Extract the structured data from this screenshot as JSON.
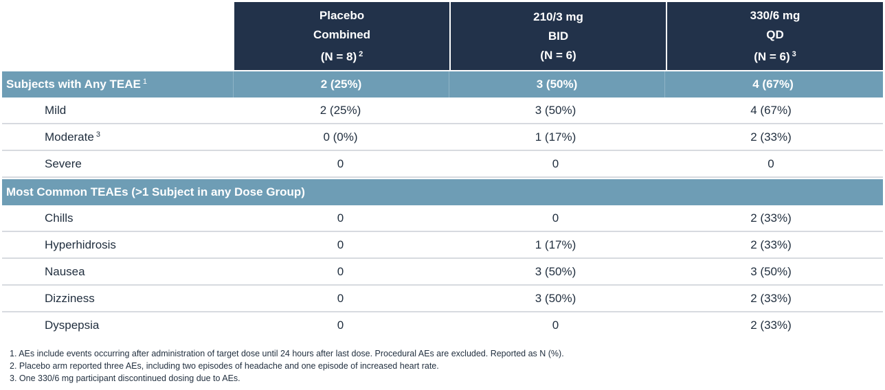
{
  "header": {
    "col1": {
      "line1": "Placebo",
      "line2": "Combined",
      "line3": "(N = 8)",
      "sup": "2"
    },
    "col2": {
      "line1": "210/3 mg",
      "line2": "BID",
      "line3": "(N = 6)",
      "sup": ""
    },
    "col3": {
      "line1": "330/6 mg",
      "line2": "QD",
      "line3": "(N = 6)",
      "sup": "3"
    }
  },
  "section1": {
    "label": "Subjects with Any TEAE",
    "sup": "1",
    "values": [
      "2 (25%)",
      "3 (50%)",
      "4 (67%)"
    ]
  },
  "rows1": [
    {
      "label": "Mild",
      "sup": "",
      "values": [
        "2 (25%)",
        "3 (50%)",
        "4 (67%)"
      ]
    },
    {
      "label": "Moderate",
      "sup": "3",
      "values": [
        "0 (0%)",
        "1 (17%)",
        "2 (33%)"
      ]
    },
    {
      "label": "Severe",
      "sup": "",
      "values": [
        "0",
        "0",
        "0"
      ]
    }
  ],
  "section2": {
    "label": "Most Common TEAEs (>1 Subject in any Dose Group)"
  },
  "rows2": [
    {
      "label": "Chills",
      "values": [
        "0",
        "0",
        "2 (33%)"
      ]
    },
    {
      "label": "Hyperhidrosis",
      "values": [
        "0",
        "1 (17%)",
        "2 (33%)"
      ]
    },
    {
      "label": "Nausea",
      "values": [
        "0",
        "3 (50%)",
        "3 (50%)"
      ]
    },
    {
      "label": "Dizziness",
      "values": [
        "0",
        "3 (50%)",
        "2 (33%)"
      ]
    },
    {
      "label": "Dyspepsia",
      "values": [
        "0",
        "0",
        "2 (33%)"
      ]
    }
  ],
  "footnotes": [
    "1. AEs include events occurring after administration of target dose until 24 hours after last dose. Procedural AEs are excluded. Reported as N (%).",
    "2. Placebo arm reported three AEs, including two episodes of headache and one episode of increased heart rate.",
    "3. One 330/6 mg participant discontinued dosing due to AEs."
  ]
}
